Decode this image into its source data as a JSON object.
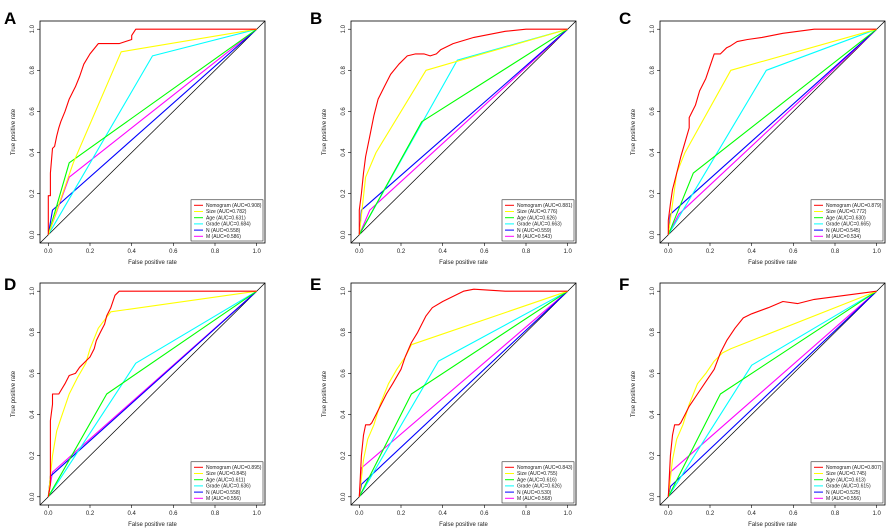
{
  "figure": {
    "description_panels": 6
  },
  "chart_data": [
    {
      "type": "line",
      "panel": "A",
      "xlabel": "False positive rate",
      "ylabel": "True positive rate",
      "xlim": [
        0,
        1
      ],
      "ylim": [
        0,
        1
      ],
      "xticks": [
        "0.0",
        "0.2",
        "0.4",
        "0.6",
        "0.8",
        "1.0"
      ],
      "yticks": [
        "0.0",
        "0.2",
        "0.4",
        "0.6",
        "0.8",
        "1.0"
      ],
      "legend_position": "bottom-right",
      "series": [
        {
          "name": "Nomogram (AUC=0.908)",
          "color": "#ff0000",
          "x": [
            0,
            0,
            0.01,
            0.01,
            0.02,
            0.03,
            0.04,
            0.05,
            0.06,
            0.08,
            0.1,
            0.12,
            0.13,
            0.15,
            0.17,
            0.2,
            0.24,
            0.27,
            0.34,
            0.4,
            0.4,
            0.42,
            1
          ],
          "y": [
            0,
            0.19,
            0.19,
            0.3,
            0.42,
            0.43,
            0.48,
            0.52,
            0.55,
            0.6,
            0.66,
            0.7,
            0.72,
            0.77,
            0.83,
            0.88,
            0.93,
            0.93,
            0.93,
            0.95,
            0.97,
            1.0,
            1.0
          ]
        },
        {
          "name": "Size (AUC=0.782)",
          "color": "#ffff00",
          "x": [
            0,
            0.12,
            0.35,
            1
          ],
          "y": [
            0,
            0.35,
            0.89,
            1
          ]
        },
        {
          "name": "Age (AUC=0.631)",
          "color": "#00ff00",
          "x": [
            0,
            0.1,
            1
          ],
          "y": [
            0,
            0.35,
            1
          ]
        },
        {
          "name": "Grade (AUC=0.684)",
          "color": "#00ffff",
          "x": [
            0,
            0.5,
            1
          ],
          "y": [
            0,
            0.87,
            1
          ]
        },
        {
          "name": "N (AUC=0.558)",
          "color": "#0000ff",
          "x": [
            0,
            0.02,
            1
          ],
          "y": [
            0,
            0.12,
            1
          ]
        },
        {
          "name": "M (AUC=0.586)",
          "color": "#ff00ff",
          "x": [
            0,
            0.1,
            1
          ],
          "y": [
            0,
            0.28,
            1
          ]
        }
      ]
    },
    {
      "type": "line",
      "panel": "B",
      "xlabel": "False positive rate",
      "ylabel": "True positive rate",
      "xlim": [
        0,
        1
      ],
      "ylim": [
        0,
        1
      ],
      "xticks": [
        "0.0",
        "0.2",
        "0.4",
        "0.6",
        "0.8",
        "1.0"
      ],
      "yticks": [
        "0.0",
        "0.2",
        "0.4",
        "0.6",
        "0.8",
        "1.0"
      ],
      "legend_position": "bottom-right",
      "series": [
        {
          "name": "Nomogram (AUC=0.881)",
          "color": "#ff0000",
          "x": [
            0,
            0,
            0.01,
            0.02,
            0.03,
            0.05,
            0.07,
            0.09,
            0.12,
            0.15,
            0.19,
            0.23,
            0.27,
            0.31,
            0.34,
            0.37,
            0.39,
            0.45,
            0.55,
            0.7,
            0.8,
            1
          ],
          "y": [
            0,
            0.12,
            0.2,
            0.3,
            0.38,
            0.48,
            0.58,
            0.66,
            0.72,
            0.78,
            0.83,
            0.87,
            0.88,
            0.88,
            0.87,
            0.88,
            0.9,
            0.93,
            0.96,
            0.99,
            1.0,
            1.0
          ]
        },
        {
          "name": "Size (AUC=0.776)",
          "color": "#ffff00",
          "x": [
            0,
            0.03,
            0.08,
            0.32,
            1
          ],
          "y": [
            0,
            0.28,
            0.4,
            0.8,
            1
          ]
        },
        {
          "name": "Age (AUC=0.626)",
          "color": "#00ff00",
          "x": [
            0,
            0.3,
            1
          ],
          "y": [
            0,
            0.55,
            1
          ]
        },
        {
          "name": "Grade (AUC=0.663)",
          "color": "#00ffff",
          "x": [
            0,
            0.47,
            1
          ],
          "y": [
            0,
            0.85,
            1
          ]
        },
        {
          "name": "N (AUC=0.559)",
          "color": "#0000ff",
          "x": [
            0,
            0.01,
            1
          ],
          "y": [
            0,
            0.12,
            1
          ]
        },
        {
          "name": "M (AUC=0.543)",
          "color": "#ff00ff",
          "x": [
            0,
            0.05,
            1
          ],
          "y": [
            0,
            0.12,
            1
          ]
        }
      ]
    },
    {
      "type": "line",
      "panel": "C",
      "xlabel": "False positive rate",
      "ylabel": "True positive rate",
      "xlim": [
        0,
        1
      ],
      "ylim": [
        0,
        1
      ],
      "xticks": [
        "0.0",
        "0.2",
        "0.4",
        "0.6",
        "0.8",
        "1.0"
      ],
      "yticks": [
        "0.0",
        "0.2",
        "0.4",
        "0.6",
        "0.8",
        "1.0"
      ],
      "legend_position": "bottom-right",
      "series": [
        {
          "name": "Nomogram (AUC=0.879)",
          "color": "#ff0000",
          "x": [
            0,
            0,
            0.01,
            0.02,
            0.04,
            0.06,
            0.08,
            0.1,
            0.1,
            0.13,
            0.15,
            0.18,
            0.2,
            0.22,
            0.25,
            0.28,
            0.3,
            0.33,
            0.38,
            0.45,
            0.55,
            0.7,
            0.8,
            1
          ],
          "y": [
            0,
            0.07,
            0.15,
            0.22,
            0.3,
            0.38,
            0.45,
            0.52,
            0.57,
            0.63,
            0.7,
            0.76,
            0.82,
            0.88,
            0.88,
            0.91,
            0.92,
            0.94,
            0.95,
            0.96,
            0.98,
            1.0,
            1.0,
            1.0
          ]
        },
        {
          "name": "Size (AUC=0.772)",
          "color": "#ffff00",
          "x": [
            0,
            0.04,
            0.08,
            0.3,
            1
          ],
          "y": [
            0,
            0.3,
            0.4,
            0.8,
            1
          ]
        },
        {
          "name": "Age (AUC=0.630)",
          "color": "#00ff00",
          "x": [
            0,
            0.12,
            1
          ],
          "y": [
            0,
            0.3,
            1
          ]
        },
        {
          "name": "Grade (AUC=0.665)",
          "color": "#00ffff",
          "x": [
            0,
            0.47,
            1
          ],
          "y": [
            0,
            0.8,
            1
          ]
        },
        {
          "name": "N (AUC=0.545)",
          "color": "#0000ff",
          "x": [
            0,
            0.01,
            1
          ],
          "y": [
            0,
            0.1,
            1
          ]
        },
        {
          "name": "M (AUC=0.534)",
          "color": "#ff00ff",
          "x": [
            0,
            0.05,
            1
          ],
          "y": [
            0,
            0.1,
            1
          ]
        }
      ]
    },
    {
      "type": "line",
      "panel": "D",
      "xlabel": "False positive rate",
      "ylabel": "True positive rate",
      "xlim": [
        0,
        1
      ],
      "ylim": [
        0,
        1
      ],
      "xticks": [
        "0.0",
        "0.2",
        "0.4",
        "0.6",
        "0.8",
        "1.0"
      ],
      "yticks": [
        "0.0",
        "0.2",
        "0.4",
        "0.6",
        "0.8",
        "1.0"
      ],
      "legend_position": "bottom-right",
      "series": [
        {
          "name": "Nomogram (AUC=0.895)",
          "color": "#ff0000",
          "x": [
            0,
            0.01,
            0.01,
            0.02,
            0.02,
            0.05,
            0.08,
            0.1,
            0.13,
            0.15,
            0.18,
            0.2,
            0.22,
            0.23,
            0.25,
            0.27,
            0.28,
            0.3,
            0.32,
            0.34,
            0.37,
            1
          ],
          "y": [
            0,
            0.06,
            0.37,
            0.45,
            0.5,
            0.5,
            0.55,
            0.59,
            0.6,
            0.63,
            0.66,
            0.68,
            0.72,
            0.76,
            0.8,
            0.84,
            0.88,
            0.92,
            0.98,
            1.0,
            1.0,
            1.0
          ]
        },
        {
          "name": "Size (AUC=0.845)",
          "color": "#ffff00",
          "x": [
            0,
            0.02,
            0.04,
            0.06,
            0.1,
            0.14,
            0.18,
            0.2,
            0.24,
            0.3,
            1
          ],
          "y": [
            0,
            0.2,
            0.32,
            0.38,
            0.5,
            0.58,
            0.65,
            0.72,
            0.82,
            0.9,
            1.0
          ]
        },
        {
          "name": "Age (AUC=0.611)",
          "color": "#00ff00",
          "x": [
            0,
            0.28,
            1
          ],
          "y": [
            0,
            0.5,
            1
          ]
        },
        {
          "name": "Grade (AUC=0.636)",
          "color": "#00ffff",
          "x": [
            0,
            0.42,
            1
          ],
          "y": [
            0,
            0.65,
            1
          ]
        },
        {
          "name": "N (AUC=0.558)",
          "color": "#0000ff",
          "x": [
            0,
            0.01,
            1
          ],
          "y": [
            0,
            0.1,
            1
          ]
        },
        {
          "name": "M (AUC=0.556)",
          "color": "#ff00ff",
          "x": [
            0,
            0.02,
            1
          ],
          "y": [
            0,
            0.12,
            1
          ]
        }
      ]
    },
    {
      "type": "line",
      "panel": "E",
      "xlabel": "False positive rate",
      "ylabel": "True positive rate",
      "xlim": [
        0,
        1
      ],
      "ylim": [
        0,
        1
      ],
      "xticks": [
        "0.0",
        "0.2",
        "0.4",
        "0.6",
        "0.8",
        "1.0"
      ],
      "yticks": [
        "0.0",
        "0.2",
        "0.4",
        "0.6",
        "0.8",
        "1.0"
      ],
      "legend_position": "bottom-right",
      "series": [
        {
          "name": "Nomogram (AUC=0.843)",
          "color": "#ff0000",
          "x": [
            0,
            0.01,
            0.02,
            0.03,
            0.05,
            0.06,
            0.08,
            0.1,
            0.13,
            0.16,
            0.2,
            0.22,
            0.25,
            0.28,
            0.3,
            0.32,
            0.35,
            0.4,
            0.5,
            0.55,
            0.7,
            1
          ],
          "y": [
            0,
            0.2,
            0.3,
            0.35,
            0.35,
            0.36,
            0.4,
            0.44,
            0.5,
            0.55,
            0.62,
            0.68,
            0.75,
            0.8,
            0.84,
            0.88,
            0.92,
            0.95,
            1.0,
            1.01,
            1.0,
            1.0
          ]
        },
        {
          "name": "Size (AUC=0.755)",
          "color": "#ffff00",
          "x": [
            0,
            0.02,
            0.04,
            0.07,
            0.1,
            0.14,
            0.18,
            0.22,
            0.25,
            1
          ],
          "y": [
            0,
            0.18,
            0.28,
            0.35,
            0.45,
            0.55,
            0.62,
            0.68,
            0.74,
            1.0
          ]
        },
        {
          "name": "Age (AUC=0.616)",
          "color": "#00ff00",
          "x": [
            0,
            0.25,
            1
          ],
          "y": [
            0,
            0.5,
            1
          ]
        },
        {
          "name": "Grade (AUC=0.626)",
          "color": "#00ffff",
          "x": [
            0,
            0.38,
            1
          ],
          "y": [
            0,
            0.66,
            1
          ]
        },
        {
          "name": "N (AUC=0.530)",
          "color": "#0000ff",
          "x": [
            0,
            0.01,
            1
          ],
          "y": [
            0,
            0.06,
            1
          ]
        },
        {
          "name": "M (AUC=0.568)",
          "color": "#ff00ff",
          "x": [
            0,
            0.01,
            1
          ],
          "y": [
            0,
            0.14,
            1
          ]
        }
      ]
    },
    {
      "type": "line",
      "panel": "F",
      "xlabel": "False positive rate",
      "ylabel": "True positive rate",
      "xlim": [
        0,
        1
      ],
      "ylim": [
        0,
        1
      ],
      "xticks": [
        "0.0",
        "0.2",
        "0.4",
        "0.6",
        "0.8",
        "1.0"
      ],
      "yticks": [
        "0.0",
        "0.2",
        "0.4",
        "0.6",
        "0.8",
        "1.0"
      ],
      "legend_position": "bottom-right",
      "series": [
        {
          "name": "Nomogram (AUC=0.807)",
          "color": "#ff0000",
          "x": [
            0,
            0.01,
            0.02,
            0.03,
            0.05,
            0.06,
            0.08,
            0.1,
            0.14,
            0.18,
            0.22,
            0.25,
            0.28,
            0.32,
            0.36,
            0.4,
            0.48,
            0.55,
            0.62,
            0.7,
            0.85,
            1
          ],
          "y": [
            0,
            0.2,
            0.3,
            0.35,
            0.35,
            0.36,
            0.4,
            0.44,
            0.5,
            0.56,
            0.62,
            0.7,
            0.76,
            0.82,
            0.87,
            0.89,
            0.92,
            0.95,
            0.94,
            0.96,
            0.98,
            1.0
          ]
        },
        {
          "name": "Size (AUC=0.745)",
          "color": "#ffff00",
          "x": [
            0,
            0.02,
            0.04,
            0.07,
            0.1,
            0.14,
            0.18,
            0.22,
            0.26,
            0.3,
            1
          ],
          "y": [
            0,
            0.18,
            0.28,
            0.35,
            0.45,
            0.55,
            0.6,
            0.66,
            0.7,
            0.72,
            1.0
          ]
        },
        {
          "name": "Age (AUC=0.613)",
          "color": "#00ff00",
          "x": [
            0,
            0.25,
            1
          ],
          "y": [
            0,
            0.5,
            1
          ]
        },
        {
          "name": "Grade (AUC=0.615)",
          "color": "#00ffff",
          "x": [
            0,
            0.4,
            1
          ],
          "y": [
            0,
            0.64,
            1
          ]
        },
        {
          "name": "N (AUC=0.525)",
          "color": "#0000ff",
          "x": [
            0,
            0.01,
            1
          ],
          "y": [
            0,
            0.05,
            1
          ]
        },
        {
          "name": "M (AUC=0.556)",
          "color": "#ff00ff",
          "x": [
            0,
            0.01,
            1
          ],
          "y": [
            0,
            0.12,
            1
          ]
        }
      ]
    }
  ]
}
